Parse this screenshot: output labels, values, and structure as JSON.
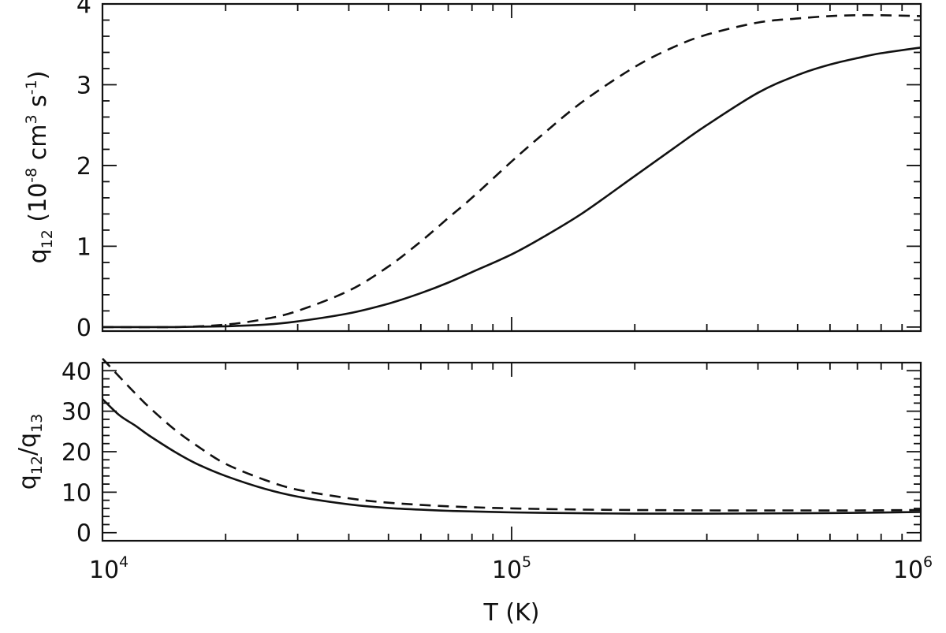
{
  "chart_data": [
    {
      "type": "line",
      "panel": "top",
      "xscale": "log",
      "xlim": [
        10000,
        1000000
      ],
      "ylim": [
        -0.05,
        4.0
      ],
      "yticks": [
        0,
        1,
        2,
        3,
        4
      ],
      "ylabel": {
        "base": "q",
        "sub": "12",
        "open": "(10",
        "exp": "-8",
        "unit1": "cm",
        "exp2": "3",
        "unit2": "s",
        "exp3": "-1",
        "close": ")"
      },
      "series": [
        {
          "style": "solid",
          "x": [
            10000,
            15000,
            20000,
            25000,
            30000,
            40000,
            50000,
            60000,
            70000,
            80000,
            100000,
            120000,
            150000,
            200000,
            250000,
            300000,
            400000,
            500000,
            600000,
            700000,
            800000,
            1000000
          ],
          "y": [
            0.0,
            0.0,
            0.01,
            0.03,
            0.07,
            0.17,
            0.29,
            0.42,
            0.55,
            0.68,
            0.9,
            1.12,
            1.42,
            1.87,
            2.22,
            2.5,
            2.9,
            3.12,
            3.25,
            3.33,
            3.39,
            3.46
          ]
        },
        {
          "style": "dashed",
          "x": [
            10000,
            15000,
            20000,
            25000,
            30000,
            40000,
            50000,
            60000,
            70000,
            80000,
            100000,
            120000,
            150000,
            200000,
            250000,
            300000,
            400000,
            500000,
            600000,
            700000,
            800000,
            1000000
          ],
          "y": [
            0.0,
            0.0,
            0.03,
            0.1,
            0.2,
            0.45,
            0.75,
            1.06,
            1.35,
            1.6,
            2.05,
            2.4,
            2.8,
            3.22,
            3.47,
            3.62,
            3.77,
            3.82,
            3.85,
            3.86,
            3.86,
            3.85
          ]
        }
      ]
    },
    {
      "type": "line",
      "panel": "bottom",
      "xscale": "log",
      "xlim": [
        10000,
        1000000
      ],
      "ylim": [
        -2,
        42
      ],
      "yticks": [
        0,
        10,
        20,
        30,
        40
      ],
      "xlabel": "T (K)",
      "xtick_labels": [
        {
          "base": "10",
          "exp": "4"
        },
        {
          "base": "10",
          "exp": "5"
        },
        {
          "base": "10",
          "exp": "6"
        }
      ],
      "ylabel": {
        "a": "q",
        "asub": "12",
        "slash": "/",
        "b": "q",
        "bsub": "13"
      },
      "series": [
        {
          "style": "solid",
          "x": [
            10000,
            11000,
            12000,
            13000,
            15000,
            17000,
            20000,
            25000,
            30000,
            40000,
            50000,
            70000,
            100000,
            150000,
            200000,
            300000,
            500000,
            700000,
            1000000
          ],
          "y": [
            33,
            29,
            26.5,
            24,
            20,
            17,
            14,
            10.8,
            8.9,
            7.0,
            6.1,
            5.4,
            5.0,
            4.8,
            4.7,
            4.7,
            4.8,
            4.9,
            5.1
          ]
        },
        {
          "style": "dashed",
          "x": [
            10000,
            11000,
            12000,
            13000,
            15000,
            17000,
            20000,
            25000,
            30000,
            40000,
            50000,
            70000,
            100000,
            150000,
            200000,
            300000,
            500000,
            700000,
            1000000
          ],
          "y": [
            43,
            38.5,
            34.5,
            31,
            25.5,
            21.5,
            17,
            13,
            10.6,
            8.5,
            7.4,
            6.5,
            6.0,
            5.7,
            5.6,
            5.5,
            5.5,
            5.5,
            5.6
          ]
        }
      ]
    }
  ]
}
